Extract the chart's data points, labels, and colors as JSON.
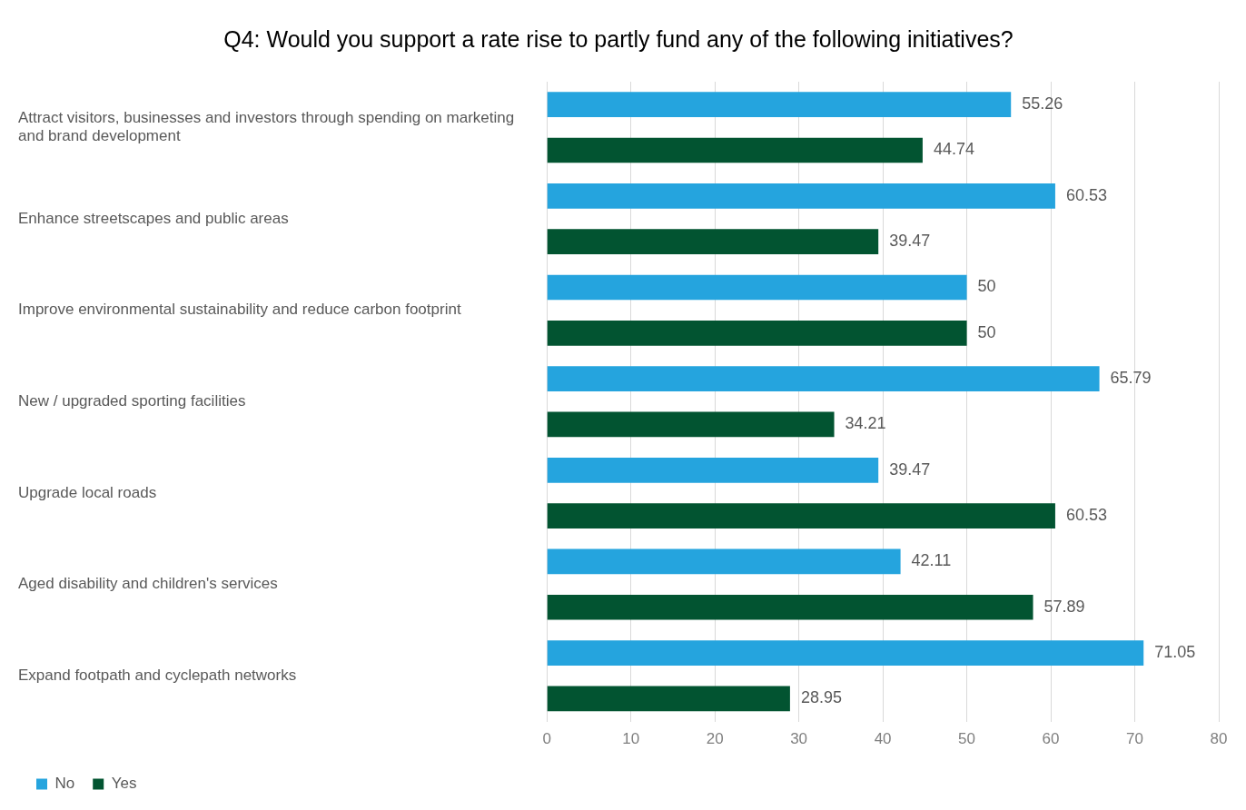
{
  "chart_data": {
    "type": "bar",
    "orientation": "horizontal",
    "title": "Q4: Would you support a rate rise to partly fund any of the following initiatives?",
    "categories": [
      "Attract visitors, businesses and investors through spending on marketing and brand development",
      "Enhance streetscapes and public areas",
      "Improve environmental sustainability and reduce carbon footprint",
      "New / upgraded sporting facilities",
      "Upgrade local roads",
      "Aged disability and children's services",
      "Expand footpath and cyclepath networks"
    ],
    "series": [
      {
        "name": "No",
        "color": "#25a4de",
        "values": [
          55.26,
          60.53,
          50,
          65.79,
          39.47,
          42.11,
          71.05
        ]
      },
      {
        "name": "Yes",
        "color": "#025431",
        "values": [
          44.74,
          39.47,
          50,
          34.21,
          60.53,
          57.89,
          28.95
        ]
      }
    ],
    "xlim": [
      0,
      80
    ],
    "xticks": [
      0,
      10,
      20,
      30,
      40,
      50,
      60,
      70,
      80
    ],
    "grid": "x",
    "legend": "bottom",
    "data_labels": true
  }
}
